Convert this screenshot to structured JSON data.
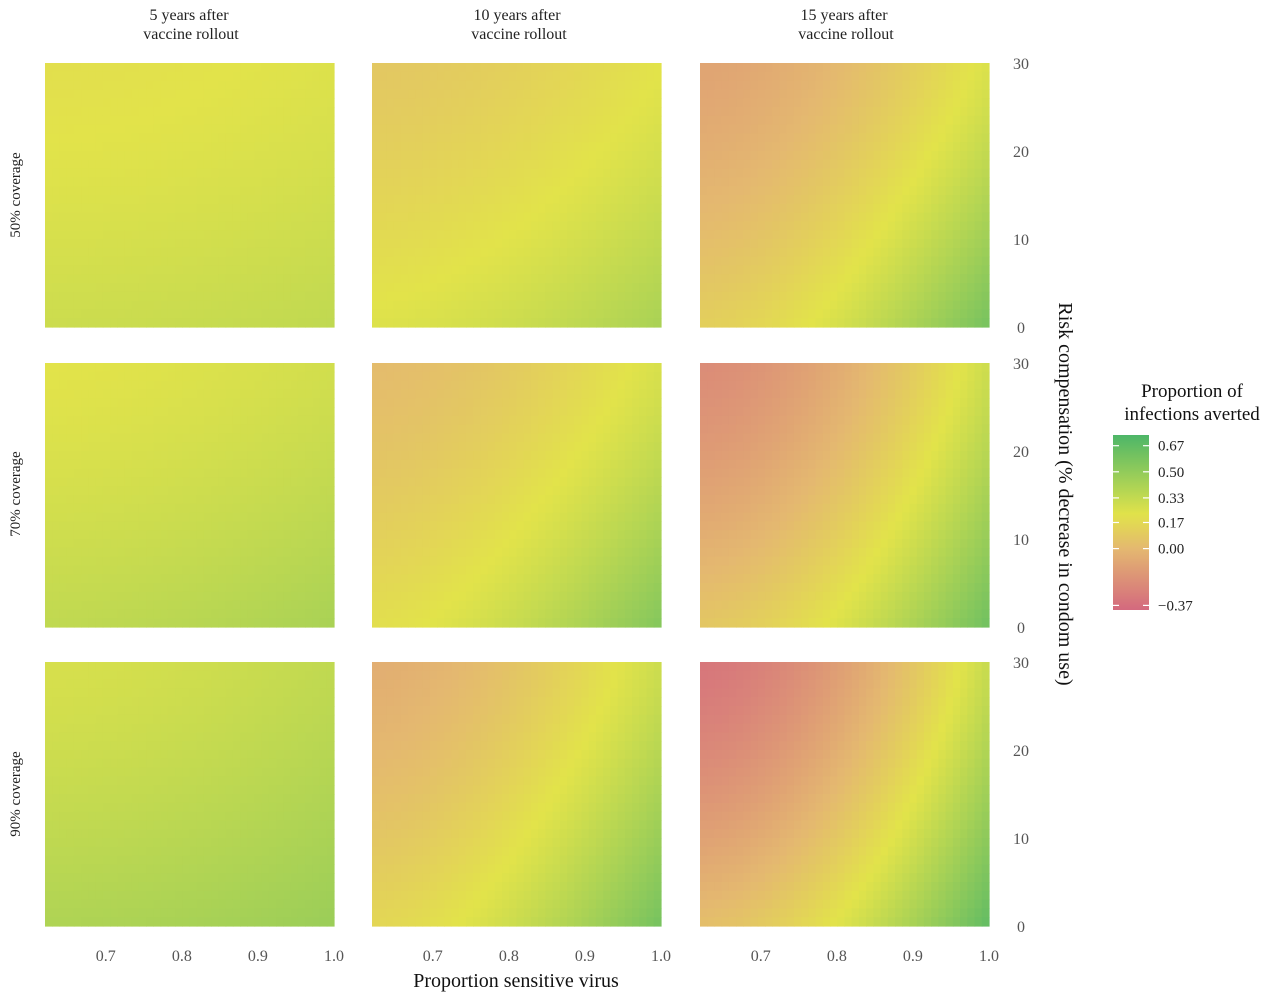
{
  "chart_data": {
    "type": "heatmap",
    "facet_cols": [
      {
        "line1": "5 years after",
        "line2": "vaccine rollout"
      },
      {
        "line1": "10 years after",
        "line2": "vaccine rollout"
      },
      {
        "line1": "15 years after",
        "line2": "vaccine rollout"
      }
    ],
    "facet_rows": [
      "50% coverage",
      "70% coverage",
      "90% coverage"
    ],
    "xlabel": "Proportion sensitive virus",
    "ylabel": "Risk compensation (% decrease in condom use)",
    "xlim": [
      0.62,
      1.0
    ],
    "ylim": [
      0,
      30
    ],
    "x_ticks": [
      "0.7",
      "0.8",
      "0.9",
      "1.0"
    ],
    "x_tick_values": [
      0.7,
      0.8,
      0.9,
      1.0
    ],
    "y_ticks": [
      "0",
      "10",
      "20",
      "30"
    ],
    "y_tick_values": [
      0,
      10,
      20,
      30
    ],
    "legend": {
      "title_line1": "Proportion of",
      "title_line2": "infections averted",
      "ticks": [
        "0.67",
        "0.50",
        "0.33",
        "0.17",
        "0.00",
        "−0.37"
      ],
      "tick_values": [
        0.67,
        0.5,
        0.33,
        0.17,
        0.0,
        -0.37
      ],
      "range": [
        -0.4,
        0.74
      ],
      "colors": {
        "low": "#d4697e",
        "mid": "#e4b870",
        "midhigh": "#e2e34a",
        "high": "#4db668"
      }
    },
    "panels": [
      {
        "row": 0,
        "col": 0,
        "top_left": 0.2,
        "top_right": 0.24,
        "bottom_left": 0.3,
        "bottom_right": 0.34
      },
      {
        "row": 0,
        "col": 1,
        "top_left": 0.08,
        "top_right": 0.22,
        "bottom_left": 0.24,
        "bottom_right": 0.42
      },
      {
        "row": 0,
        "col": 2,
        "top_left": -0.1,
        "top_right": 0.25,
        "bottom_left": 0.12,
        "bottom_right": 0.6
      },
      {
        "row": 1,
        "col": 0,
        "top_left": 0.22,
        "top_right": 0.28,
        "bottom_left": 0.34,
        "bottom_right": 0.42
      },
      {
        "row": 1,
        "col": 1,
        "top_left": 0.02,
        "top_right": 0.26,
        "bottom_left": 0.2,
        "bottom_right": 0.55
      },
      {
        "row": 1,
        "col": 2,
        "top_left": -0.22,
        "top_right": 0.3,
        "bottom_left": 0.08,
        "bottom_right": 0.62
      },
      {
        "row": 2,
        "col": 0,
        "top_left": 0.26,
        "top_right": 0.34,
        "bottom_left": 0.4,
        "bottom_right": 0.47
      },
      {
        "row": 2,
        "col": 1,
        "top_left": -0.05,
        "top_right": 0.3,
        "bottom_left": 0.16,
        "bottom_right": 0.6
      },
      {
        "row": 2,
        "col": 2,
        "top_left": -0.33,
        "top_right": 0.32,
        "bottom_left": 0.04,
        "bottom_right": 0.67
      }
    ]
  }
}
